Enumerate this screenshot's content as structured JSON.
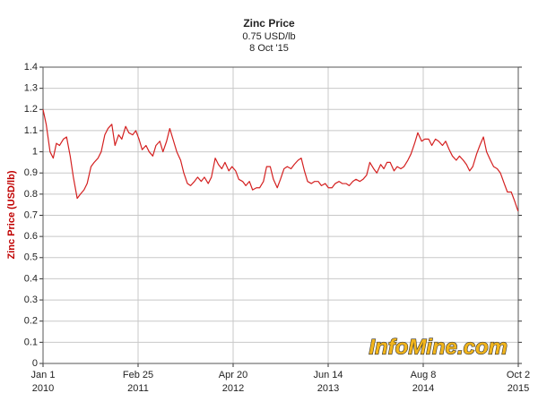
{
  "chart_data": {
    "type": "line",
    "title": "Zinc Price",
    "subtitle": "0.75 USD/lb",
    "date_label": "8 Oct '15",
    "y_label": "Zinc Price (USD/lb)",
    "watermark": "InfoMine.com",
    "grid": true,
    "ylim": [
      0,
      1.4
    ],
    "yticks": [
      0,
      0.1,
      0.2,
      0.3,
      0.4,
      0.5,
      0.6,
      0.7,
      0.8,
      0.9,
      1,
      1.1,
      1.2,
      1.3,
      1.4
    ],
    "xlim": [
      "2010-01-01",
      "2015-10-02"
    ],
    "xticks": [
      {
        "value": "2010-01-01",
        "label": [
          "Jan 1",
          "2010"
        ]
      },
      {
        "value": "2011-02-25",
        "label": [
          "Feb 25",
          "2011"
        ]
      },
      {
        "value": "2012-04-20",
        "label": [
          "Apr 20",
          "2012"
        ]
      },
      {
        "value": "2013-06-14",
        "label": [
          "Jun 14",
          "2013"
        ]
      },
      {
        "value": "2014-08-08",
        "label": [
          "Aug 8",
          "2014"
        ]
      },
      {
        "value": "2015-10-02",
        "label": [
          "Oct 2",
          "2015"
        ]
      }
    ],
    "x": [
      "2010-01-01",
      "2010-01-15",
      "2010-02-01",
      "2010-02-15",
      "2010-03-01",
      "2010-03-15",
      "2010-04-01",
      "2010-04-15",
      "2010-05-01",
      "2010-05-15",
      "2010-06-01",
      "2010-06-15",
      "2010-07-01",
      "2010-07-15",
      "2010-08-01",
      "2010-08-15",
      "2010-09-01",
      "2010-09-15",
      "2010-10-01",
      "2010-10-15",
      "2010-11-01",
      "2010-11-15",
      "2010-12-01",
      "2010-12-15",
      "2011-01-01",
      "2011-01-15",
      "2011-02-01",
      "2011-02-15",
      "2011-03-01",
      "2011-03-15",
      "2011-04-01",
      "2011-04-15",
      "2011-05-01",
      "2011-05-15",
      "2011-06-01",
      "2011-06-15",
      "2011-07-01",
      "2011-07-15",
      "2011-08-01",
      "2011-08-15",
      "2011-09-01",
      "2011-09-15",
      "2011-10-01",
      "2011-10-15",
      "2011-11-01",
      "2011-11-15",
      "2011-12-01",
      "2011-12-15",
      "2012-01-01",
      "2012-01-15",
      "2012-02-01",
      "2012-02-15",
      "2012-03-01",
      "2012-03-15",
      "2012-04-01",
      "2012-04-15",
      "2012-05-01",
      "2012-05-15",
      "2012-06-01",
      "2012-06-15",
      "2012-07-01",
      "2012-07-15",
      "2012-08-01",
      "2012-08-15",
      "2012-09-01",
      "2012-09-15",
      "2012-10-01",
      "2012-10-15",
      "2012-11-01",
      "2012-11-15",
      "2012-12-01",
      "2012-12-15",
      "2013-01-01",
      "2013-01-15",
      "2013-02-01",
      "2013-02-15",
      "2013-03-01",
      "2013-03-15",
      "2013-04-01",
      "2013-04-15",
      "2013-05-01",
      "2013-05-15",
      "2013-06-01",
      "2013-06-15",
      "2013-07-01",
      "2013-07-15",
      "2013-08-01",
      "2013-08-15",
      "2013-09-01",
      "2013-09-15",
      "2013-10-01",
      "2013-10-15",
      "2013-11-01",
      "2013-11-15",
      "2013-12-01",
      "2013-12-15",
      "2014-01-01",
      "2014-01-15",
      "2014-02-01",
      "2014-02-15",
      "2014-03-01",
      "2014-03-15",
      "2014-04-01",
      "2014-04-15",
      "2014-05-01",
      "2014-05-15",
      "2014-06-01",
      "2014-06-15",
      "2014-07-01",
      "2014-07-15",
      "2014-08-01",
      "2014-08-15",
      "2014-09-01",
      "2014-09-15",
      "2014-10-01",
      "2014-10-15",
      "2014-11-01",
      "2014-11-15",
      "2014-12-01",
      "2014-12-15",
      "2015-01-01",
      "2015-01-15",
      "2015-02-01",
      "2015-02-15",
      "2015-03-01",
      "2015-03-15",
      "2015-04-01",
      "2015-04-15",
      "2015-05-01",
      "2015-05-15",
      "2015-06-01",
      "2015-06-15",
      "2015-07-01",
      "2015-07-15",
      "2015-08-01",
      "2015-08-15",
      "2015-09-01",
      "2015-09-15",
      "2015-10-01"
    ],
    "series": [
      {
        "name": "Zinc Price",
        "color": "#d42020",
        "values": [
          1.2,
          1.13,
          1.0,
          0.97,
          1.04,
          1.03,
          1.06,
          1.07,
          0.98,
          0.88,
          0.78,
          0.8,
          0.82,
          0.85,
          0.93,
          0.95,
          0.97,
          1.0,
          1.08,
          1.11,
          1.13,
          1.03,
          1.08,
          1.06,
          1.12,
          1.09,
          1.08,
          1.1,
          1.06,
          1.01,
          1.03,
          1.0,
          0.98,
          1.03,
          1.05,
          1.0,
          1.05,
          1.11,
          1.05,
          1.0,
          0.96,
          0.9,
          0.85,
          0.84,
          0.86,
          0.88,
          0.86,
          0.88,
          0.85,
          0.88,
          0.97,
          0.94,
          0.92,
          0.95,
          0.91,
          0.93,
          0.91,
          0.87,
          0.86,
          0.84,
          0.86,
          0.82,
          0.83,
          0.83,
          0.86,
          0.93,
          0.93,
          0.87,
          0.83,
          0.87,
          0.92,
          0.93,
          0.92,
          0.94,
          0.96,
          0.97,
          0.91,
          0.86,
          0.85,
          0.86,
          0.86,
          0.84,
          0.85,
          0.83,
          0.83,
          0.85,
          0.86,
          0.85,
          0.85,
          0.84,
          0.86,
          0.87,
          0.86,
          0.87,
          0.89,
          0.95,
          0.92,
          0.9,
          0.94,
          0.92,
          0.95,
          0.95,
          0.91,
          0.93,
          0.92,
          0.93,
          0.96,
          0.99,
          1.04,
          1.09,
          1.05,
          1.06,
          1.06,
          1.03,
          1.06,
          1.05,
          1.03,
          1.05,
          1.01,
          0.98,
          0.96,
          0.98,
          0.96,
          0.94,
          0.91,
          0.93,
          0.99,
          1.03,
          1.07,
          1.0,
          0.96,
          0.93,
          0.92,
          0.9,
          0.85,
          0.81,
          0.81,
          0.77,
          0.72
        ]
      }
    ]
  }
}
